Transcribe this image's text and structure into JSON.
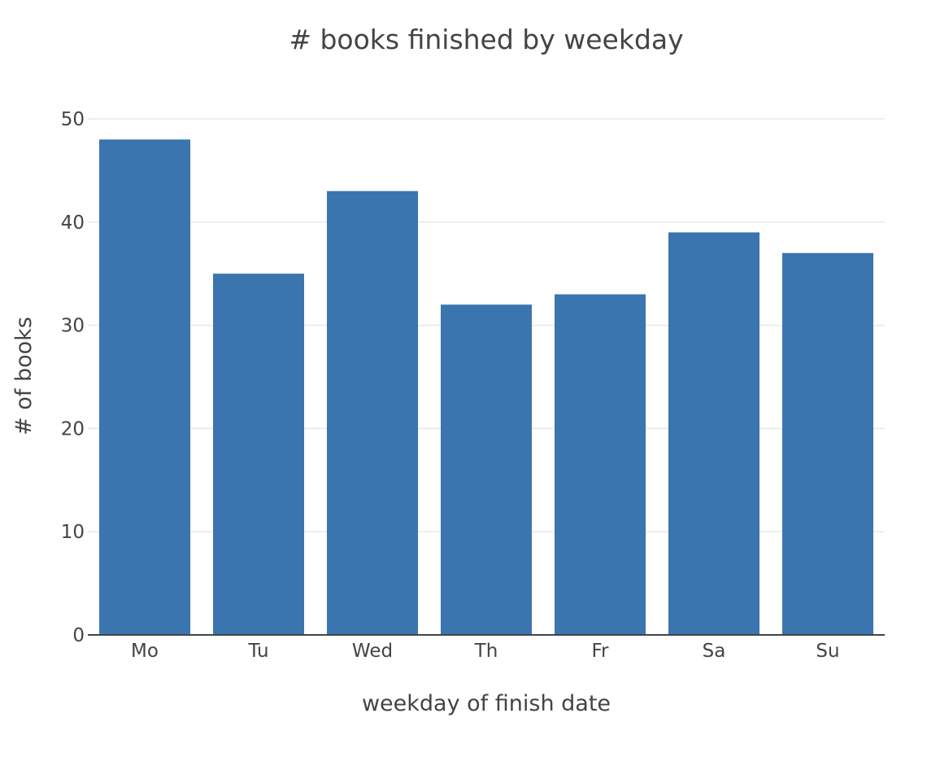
{
  "chart_data": {
    "type": "bar",
    "title": "# books finished by weekday",
    "xlabel": "weekday of finish date",
    "ylabel": "# of books",
    "categories": [
      "Mo",
      "Tu",
      "Wed",
      "Th",
      "Fr",
      "Sa",
      "Su"
    ],
    "values": [
      48,
      35,
      43,
      32,
      33,
      39,
      37
    ],
    "ylim": [
      0,
      50
    ],
    "yticks": [
      0,
      10,
      20,
      30,
      40,
      50
    ],
    "ytick_labels": [
      "0",
      "10",
      "20",
      "30",
      "40",
      "50"
    ],
    "grid": true,
    "legend": false,
    "bar_color": "#3a75af"
  }
}
